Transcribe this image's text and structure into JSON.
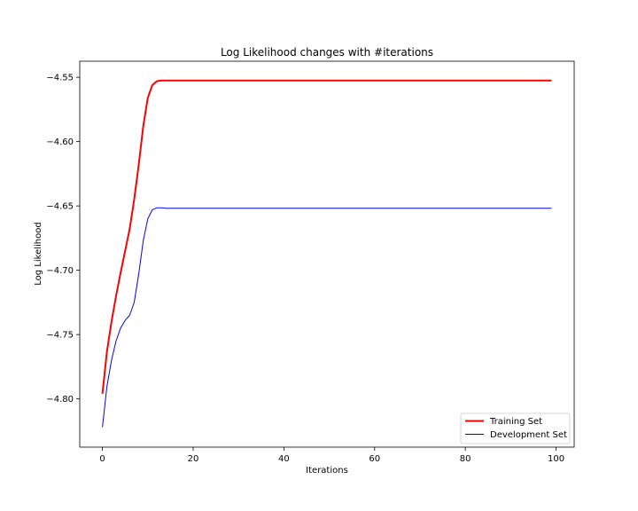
{
  "chart_data": {
    "type": "line",
    "title": "Log Likelihood changes with #iterations",
    "xlabel": "Iterations",
    "ylabel": "Log Likelihood",
    "xlim": [
      -5,
      104
    ],
    "ylim": [
      -4.8375,
      -4.5375
    ],
    "xticks": [
      0,
      20,
      40,
      60,
      80,
      100
    ],
    "xtick_labels": [
      "0",
      "20",
      "40",
      "60",
      "80",
      "100"
    ],
    "yticks": [
      -4.55,
      -4.6,
      -4.65,
      -4.7,
      -4.75,
      -4.8
    ],
    "ytick_labels": [
      "−4.55",
      "−4.60",
      "−4.65",
      "−4.70",
      "−4.75",
      "−4.80"
    ],
    "grid": false,
    "legend_position": "lower-right",
    "series": [
      {
        "name": "Training Set",
        "color": "#ff0000",
        "x": [
          0,
          1,
          2,
          3,
          4,
          5,
          6,
          7,
          8,
          9,
          10,
          11,
          12,
          13,
          14,
          15,
          20,
          30,
          40,
          50,
          60,
          70,
          80,
          90,
          99
        ],
        "y": [
          -4.796,
          -4.763,
          -4.74,
          -4.72,
          -4.702,
          -4.685,
          -4.668,
          -4.645,
          -4.618,
          -4.588,
          -4.566,
          -4.556,
          -4.553,
          -4.5525,
          -4.5525,
          -4.5525,
          -4.5525,
          -4.5525,
          -4.5525,
          -4.5525,
          -4.5525,
          -4.5525,
          -4.5525,
          -4.5525,
          -4.5525
        ]
      },
      {
        "name": "Development Set",
        "color": "#0000ff",
        "x": [
          0,
          1,
          2,
          3,
          4,
          5,
          6,
          7,
          8,
          9,
          10,
          11,
          12,
          13,
          14,
          15,
          20,
          30,
          40,
          50,
          60,
          70,
          80,
          90,
          99
        ],
        "y": [
          -4.822,
          -4.79,
          -4.77,
          -4.755,
          -4.745,
          -4.739,
          -4.735,
          -4.725,
          -4.703,
          -4.677,
          -4.66,
          -4.653,
          -4.6515,
          -4.6515,
          -4.6518,
          -4.6518,
          -4.6518,
          -4.6518,
          -4.6518,
          -4.6518,
          -4.6518,
          -4.6518,
          -4.6518,
          -4.6518,
          -4.6518
        ]
      }
    ]
  }
}
